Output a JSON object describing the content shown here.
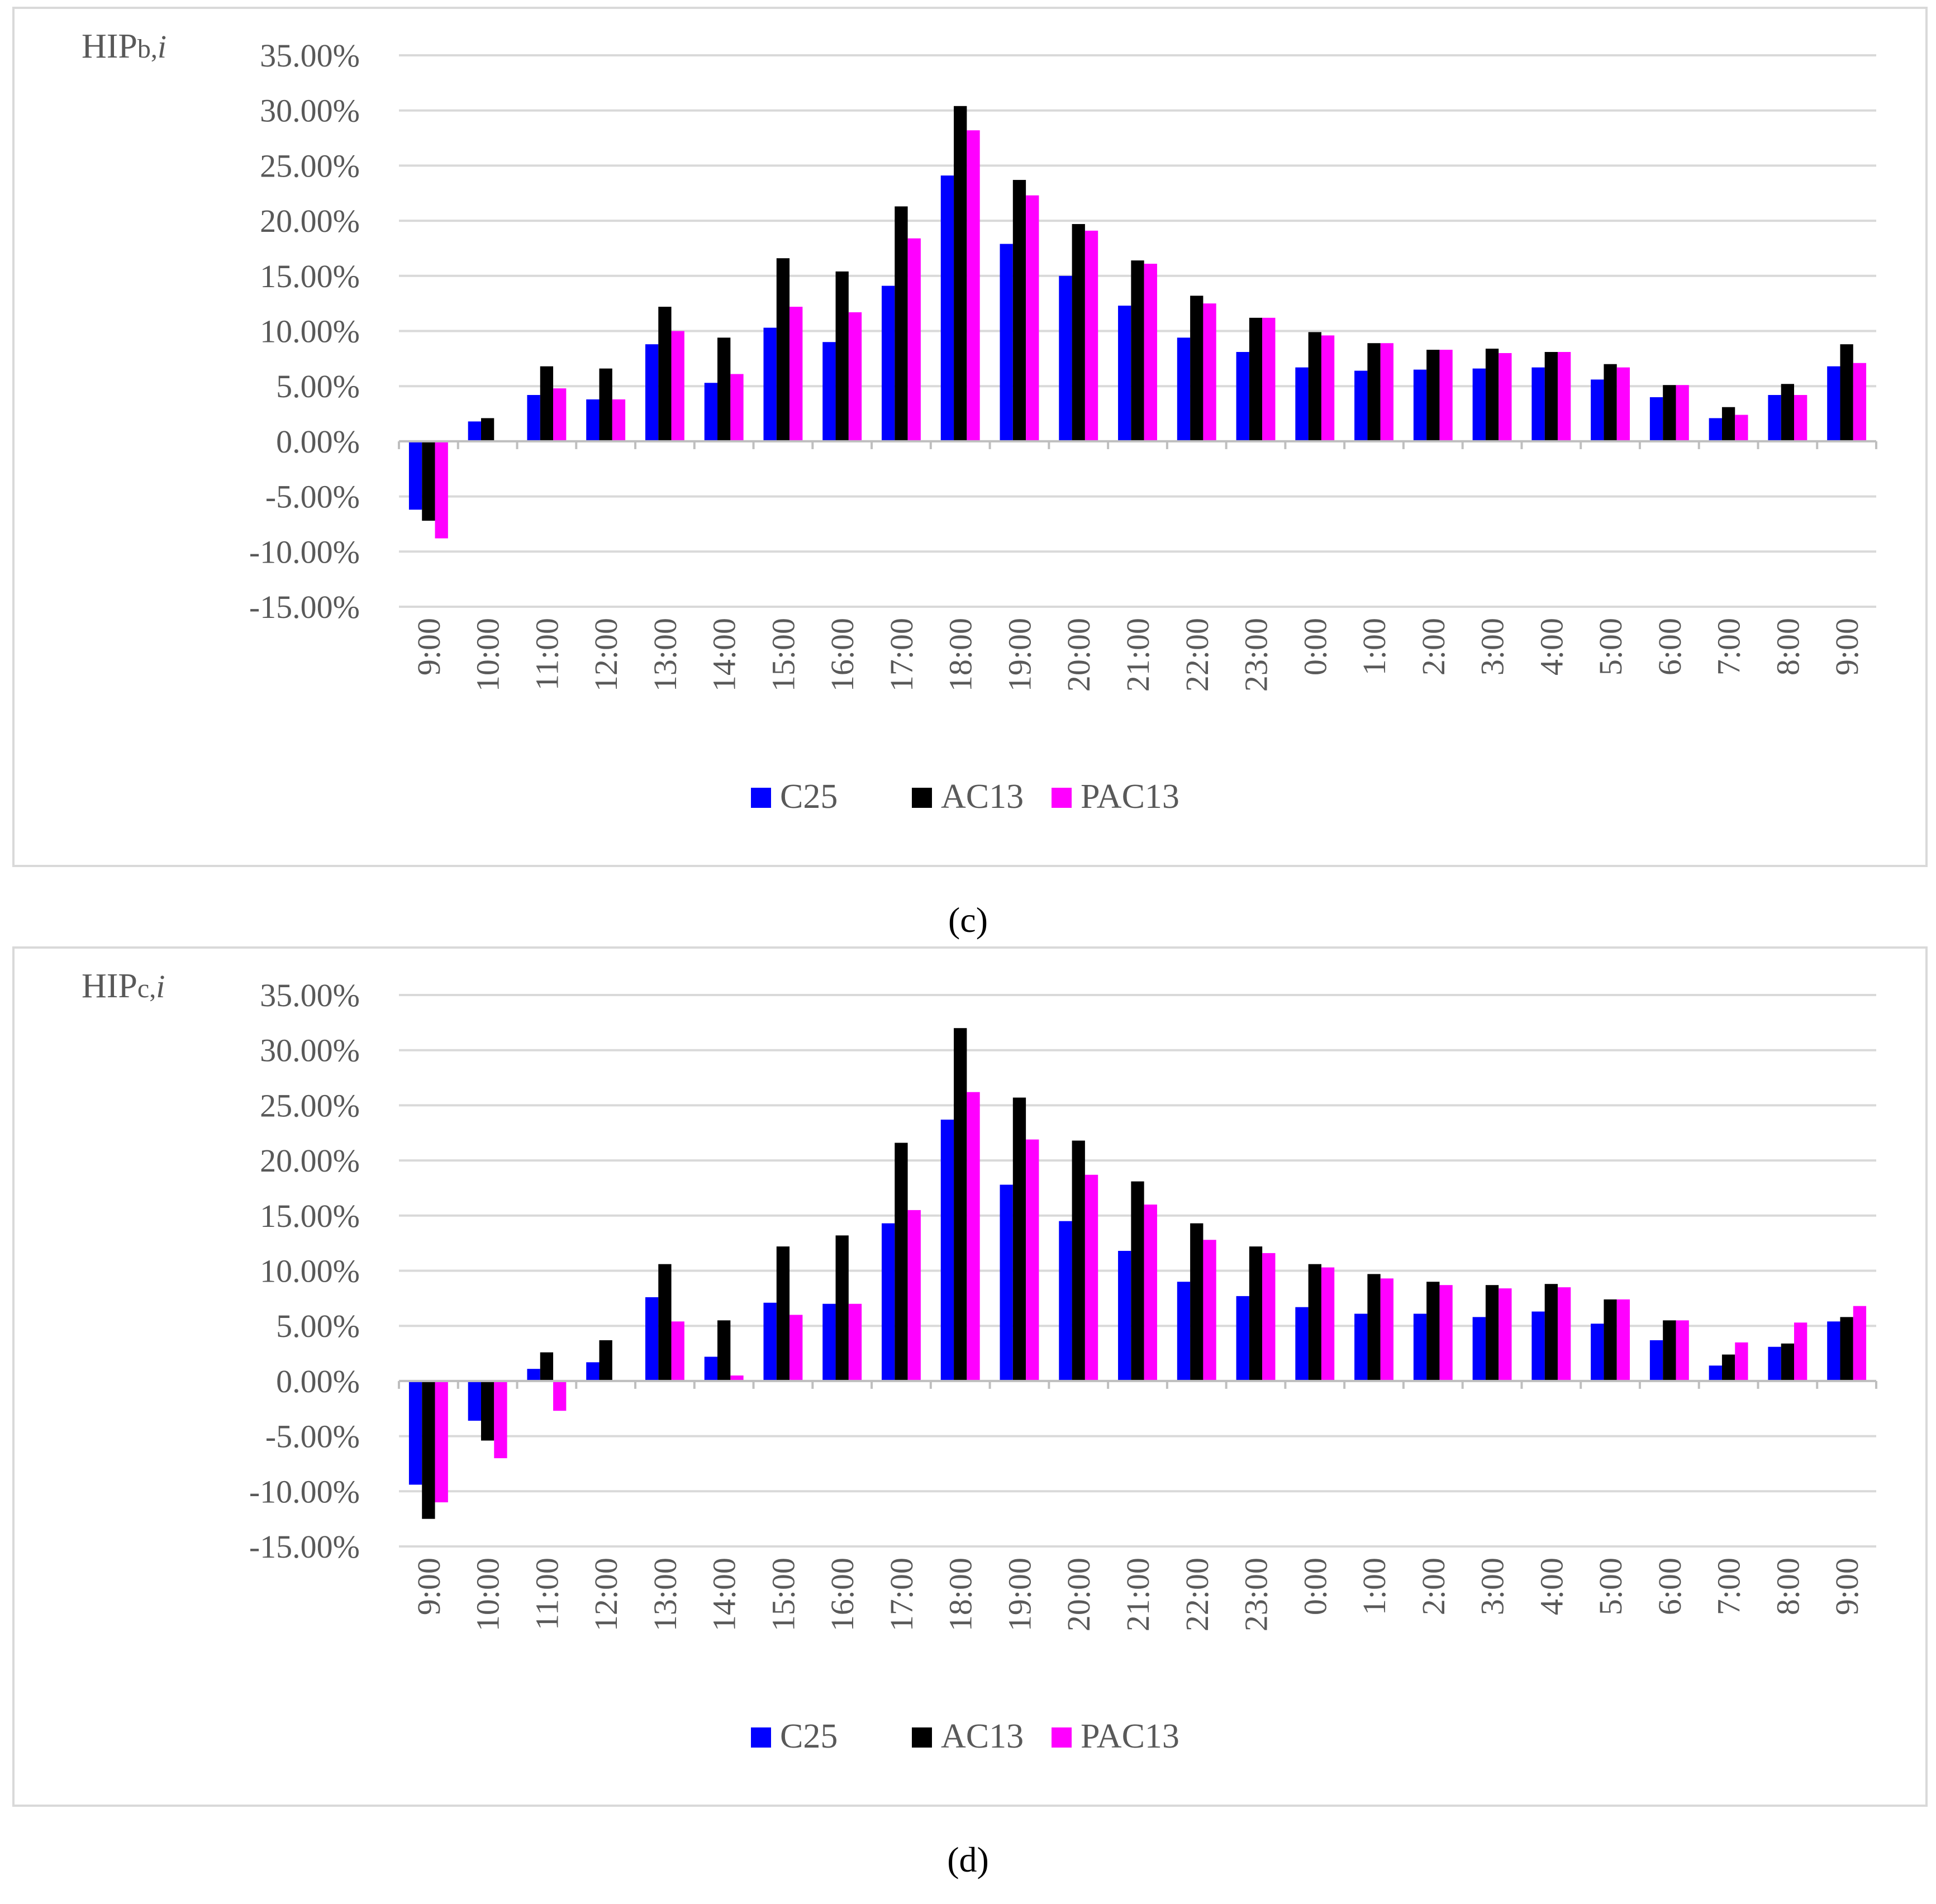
{
  "colors": {
    "C25": "#0000ff",
    "AC13": "#000000",
    "PAC13": "#ff00ff"
  },
  "captions": {
    "c": "(c)",
    "d": "(d)"
  },
  "chart_data": [
    {
      "id": "c",
      "type": "bar",
      "title": "",
      "ylabel_main": "HIP",
      "ylabel_sub": "b,",
      "ylabel_italic": "i",
      "xlabel": "",
      "ylim": [
        -0.15,
        0.35
      ],
      "ytick_step": 0.05,
      "yticks": [
        "35.00%",
        "30.00%",
        "25.00%",
        "20.00%",
        "15.00%",
        "10.00%",
        "5.00%",
        "0.00%",
        "-5.00%",
        "-10.00%",
        "-15.00%"
      ],
      "categories": [
        "9:00",
        "10:00",
        "11:00",
        "12:00",
        "13:00",
        "14:00",
        "15:00",
        "16:00",
        "17:00",
        "18:00",
        "19:00",
        "20:00",
        "21:00",
        "22:00",
        "23:00",
        "0:00",
        "1:00",
        "2:00",
        "3:00",
        "4:00",
        "5:00",
        "6:00",
        "7:00",
        "8:00",
        "9:00"
      ],
      "legend_position": "bottom",
      "series": [
        {
          "name": "C25",
          "color": "#0000ff",
          "values": [
            -0.062,
            0.018,
            0.042,
            0.038,
            0.088,
            0.053,
            0.103,
            0.09,
            0.141,
            0.241,
            0.179,
            0.15,
            0.123,
            0.094,
            0.081,
            0.067,
            0.064,
            0.065,
            0.066,
            0.067,
            0.056,
            0.04,
            0.021,
            0.042,
            0.068
          ]
        },
        {
          "name": "AC13",
          "color": "#000000",
          "values": [
            -0.072,
            0.021,
            0.068,
            0.066,
            0.122,
            0.094,
            0.166,
            0.154,
            0.213,
            0.304,
            0.237,
            0.197,
            0.164,
            0.132,
            0.112,
            0.099,
            0.089,
            0.083,
            0.084,
            0.081,
            0.07,
            0.051,
            0.031,
            0.052,
            0.088
          ]
        },
        {
          "name": "PAC13",
          "color": "#ff00ff",
          "values": [
            -0.088,
            0.0,
            0.048,
            0.038,
            0.1,
            0.061,
            0.122,
            0.117,
            0.184,
            0.282,
            0.223,
            0.191,
            0.161,
            0.125,
            0.112,
            0.096,
            0.089,
            0.083,
            0.08,
            0.081,
            0.067,
            0.051,
            0.024,
            0.042,
            0.071
          ]
        }
      ]
    },
    {
      "id": "d",
      "type": "bar",
      "title": "",
      "ylabel_main": "HIP",
      "ylabel_sub": "c,",
      "ylabel_italic": "i",
      "xlabel": "",
      "ylim": [
        -0.15,
        0.35
      ],
      "ytick_step": 0.05,
      "yticks": [
        "35.00%",
        "30.00%",
        "25.00%",
        "20.00%",
        "15.00%",
        "10.00%",
        "5.00%",
        "0.00%",
        "-5.00%",
        "-10.00%",
        "-15.00%"
      ],
      "categories": [
        "9:00",
        "10:00",
        "11:00",
        "12:00",
        "13:00",
        "14:00",
        "15:00",
        "16:00",
        "17:00",
        "18:00",
        "19:00",
        "20:00",
        "21:00",
        "22:00",
        "23:00",
        "0:00",
        "1:00",
        "2:00",
        "3:00",
        "4:00",
        "5:00",
        "6:00",
        "7:00",
        "8:00",
        "9:00"
      ],
      "legend_position": "bottom",
      "series": [
        {
          "name": "C25",
          "color": "#0000ff",
          "values": [
            -0.094,
            -0.036,
            0.011,
            0.017,
            0.076,
            0.022,
            0.071,
            0.07,
            0.143,
            0.237,
            0.178,
            0.145,
            0.118,
            0.09,
            0.077,
            0.067,
            0.061,
            0.061,
            0.058,
            0.063,
            0.052,
            0.037,
            0.014,
            0.031,
            0.054
          ]
        },
        {
          "name": "AC13",
          "color": "#000000",
          "values": [
            -0.125,
            -0.054,
            0.026,
            0.037,
            0.106,
            0.055,
            0.122,
            0.132,
            0.216,
            0.32,
            0.257,
            0.218,
            0.181,
            0.143,
            0.122,
            0.106,
            0.097,
            0.09,
            0.087,
            0.088,
            0.074,
            0.055,
            0.024,
            0.034,
            0.058
          ]
        },
        {
          "name": "PAC13",
          "color": "#ff00ff",
          "values": [
            -0.11,
            -0.07,
            -0.027,
            0.0,
            0.054,
            0.005,
            0.06,
            0.07,
            0.155,
            0.262,
            0.219,
            0.187,
            0.16,
            0.128,
            0.116,
            0.103,
            0.093,
            0.087,
            0.084,
            0.085,
            0.074,
            0.055,
            0.035,
            0.053,
            0.068
          ]
        }
      ]
    }
  ]
}
